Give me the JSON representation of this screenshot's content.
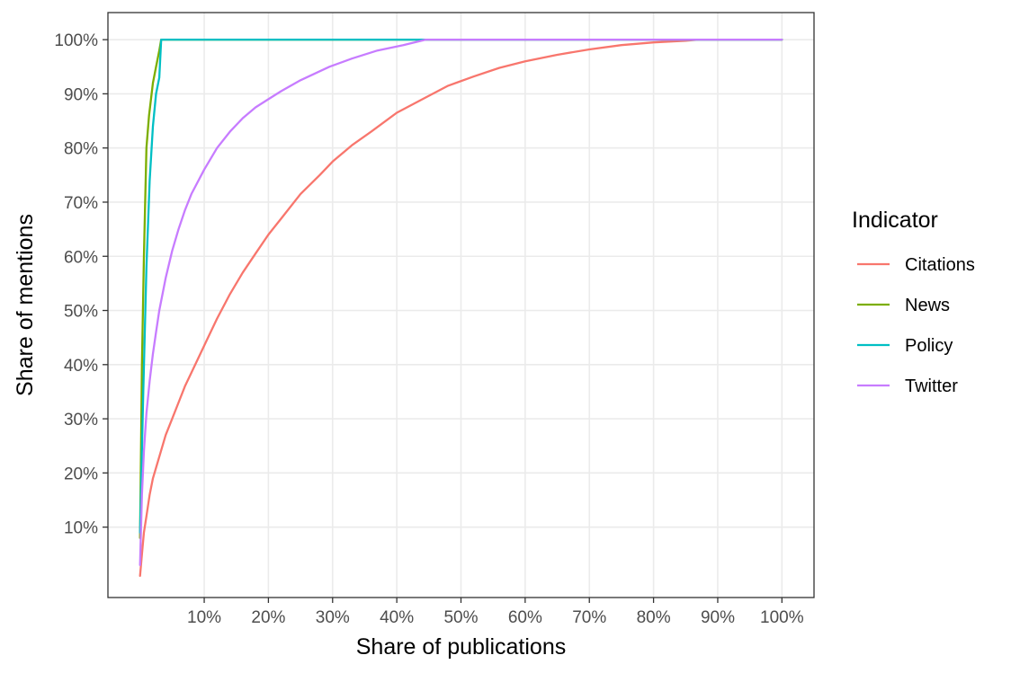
{
  "chart_data": {
    "type": "line",
    "xlabel": "Share of publications",
    "ylabel": "Share of mentions",
    "xlim": [
      -5,
      105
    ],
    "ylim": [
      -3,
      105
    ],
    "x_ticks": [
      {
        "value": 10,
        "label": "10%"
      },
      {
        "value": 20,
        "label": "20%"
      },
      {
        "value": 30,
        "label": "30%"
      },
      {
        "value": 40,
        "label": "40%"
      },
      {
        "value": 50,
        "label": "50%"
      },
      {
        "value": 60,
        "label": "60%"
      },
      {
        "value": 70,
        "label": "70%"
      },
      {
        "value": 80,
        "label": "80%"
      },
      {
        "value": 90,
        "label": "90%"
      },
      {
        "value": 100,
        "label": "100%"
      }
    ],
    "y_ticks": [
      {
        "value": 10,
        "label": "10%"
      },
      {
        "value": 20,
        "label": "20%"
      },
      {
        "value": 30,
        "label": "30%"
      },
      {
        "value": 40,
        "label": "40%"
      },
      {
        "value": 50,
        "label": "50%"
      },
      {
        "value": 60,
        "label": "60%"
      },
      {
        "value": 70,
        "label": "70%"
      },
      {
        "value": 80,
        "label": "80%"
      },
      {
        "value": 90,
        "label": "90%"
      },
      {
        "value": 100,
        "label": "100%"
      }
    ],
    "grid": true,
    "legend": {
      "title": "Indicator",
      "position": "right"
    },
    "series": [
      {
        "name": "Citations",
        "color": "#F8766D",
        "x": [
          0,
          0.3,
          0.6,
          1,
          1.5,
          2,
          3,
          4,
          5,
          6,
          7,
          8,
          10,
          12,
          14,
          16,
          18,
          20,
          22,
          25,
          28,
          30,
          33,
          36,
          40,
          44,
          48,
          52,
          56,
          60,
          65,
          70,
          75,
          80,
          85,
          87,
          90,
          95,
          100
        ],
        "y": [
          1,
          5,
          9,
          12,
          16,
          19,
          23,
          27,
          30,
          33,
          36,
          38.5,
          43.5,
          48.5,
          53,
          57,
          60.5,
          64,
          67,
          71.5,
          75,
          77.5,
          80.5,
          83,
          86.5,
          89,
          91.5,
          93.2,
          94.8,
          96,
          97.2,
          98.2,
          99,
          99.5,
          99.8,
          100,
          100,
          100,
          100
        ]
      },
      {
        "name": "News",
        "color": "#7CAE00",
        "x": [
          0,
          0.3,
          0.6,
          1,
          1.4,
          2,
          2.5,
          3,
          3.3,
          5,
          20,
          40,
          60,
          80,
          100
        ],
        "y": [
          8,
          40,
          60,
          80,
          86,
          92,
          95,
          98,
          100,
          100,
          100,
          100,
          100,
          100,
          100
        ]
      },
      {
        "name": "Policy",
        "color": "#00BFC4",
        "x": [
          0,
          0.5,
          1,
          1.5,
          2,
          2.5,
          3,
          3.3,
          10,
          20,
          40,
          60,
          80,
          100
        ],
        "y": [
          9,
          35,
          58,
          74,
          84,
          90,
          93,
          100,
          100,
          100,
          100,
          100,
          100,
          100
        ]
      },
      {
        "name": "Twitter",
        "color": "#C77CFF",
        "x": [
          0,
          0.3,
          0.6,
          1,
          1.5,
          2,
          2.5,
          3,
          4,
          5,
          6,
          7,
          8,
          10,
          12,
          14,
          16,
          18,
          20,
          22,
          25,
          29.5,
          33,
          37,
          41,
          44.5,
          50,
          60,
          80,
          100
        ],
        "y": [
          3,
          16,
          24,
          31,
          37,
          42,
          46,
          50,
          56,
          61,
          65,
          68.5,
          71.5,
          76,
          80,
          83,
          85.5,
          87.5,
          89,
          90.5,
          92.5,
          95,
          96.5,
          98,
          99,
          100,
          100,
          100,
          100,
          100
        ]
      }
    ]
  }
}
